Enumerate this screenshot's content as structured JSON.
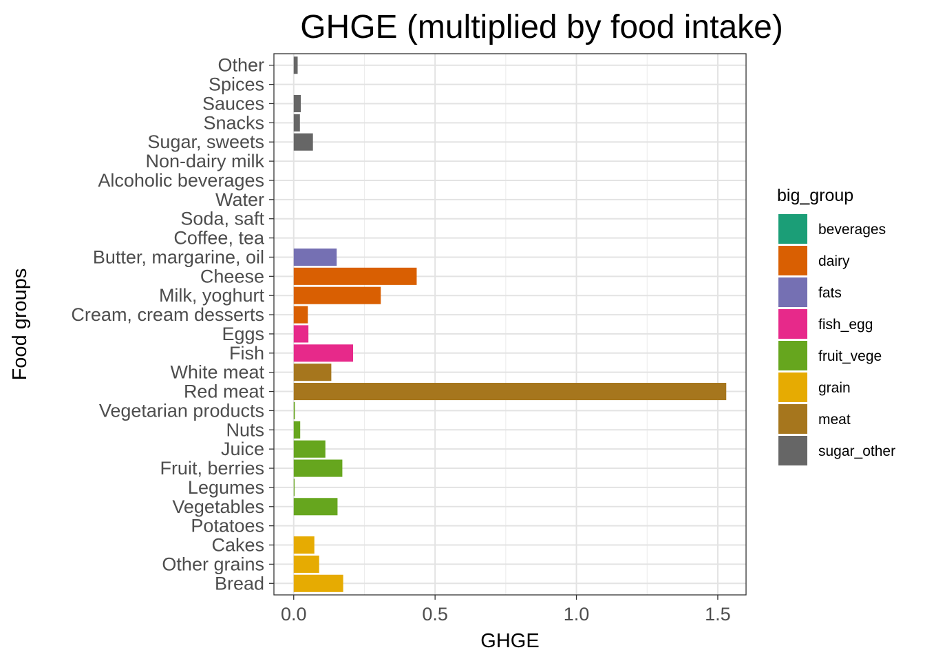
{
  "chart_data": {
    "type": "bar",
    "orientation": "horizontal",
    "title": "GHGE (multiplied by food intake)",
    "xlabel": "GHGE",
    "ylabel": "Food groups",
    "xlim": [
      -0.07,
      1.6
    ],
    "x_ticks": [
      0.0,
      0.5,
      1.0,
      1.5
    ],
    "x_tick_labels": [
      "0.0",
      "0.5",
      "1.0",
      "1.5"
    ],
    "grid": true,
    "legend_position": "right",
    "categories": [
      "Bread",
      "Other grains",
      "Cakes",
      "Potatoes",
      "Vegetables",
      "Legumes",
      "Fruit, berries",
      "Juice",
      "Nuts",
      "Vegetarian products",
      "Red meat",
      "White meat",
      "Fish",
      "Eggs",
      "Cream, cream desserts",
      "Milk, yoghurt",
      "Cheese",
      "Butter, margarine, oil",
      "Coffee, tea",
      "Soda, saft",
      "Water",
      "Alcoholic beverages",
      "Non-dairy milk",
      "Sugar, sweets",
      "Snacks",
      "Sauces",
      "Spices",
      "Other"
    ],
    "values": [
      0.175,
      0.09,
      0.073,
      0.0,
      0.155,
      0.003,
      0.172,
      0.112,
      0.023,
      0.004,
      1.53,
      0.133,
      0.21,
      0.052,
      0.05,
      0.308,
      0.435,
      0.152,
      0.0,
      0.0,
      0.0,
      0.0,
      0.0,
      0.068,
      0.022,
      0.025,
      0.0,
      0.014
    ],
    "groups": [
      "grain",
      "grain",
      "grain",
      "fruit_vege",
      "fruit_vege",
      "fruit_vege",
      "fruit_vege",
      "fruit_vege",
      "fruit_vege",
      "fruit_vege",
      "meat",
      "meat",
      "fish_egg",
      "fish_egg",
      "dairy",
      "dairy",
      "dairy",
      "fats",
      "beverages",
      "beverages",
      "beverages",
      "beverages",
      "beverages",
      "sugar_other",
      "sugar_other",
      "sugar_other",
      "sugar_other",
      "sugar_other"
    ],
    "legend": {
      "title": "big_group",
      "items": [
        {
          "label": "beverages",
          "color": "#1b9e77"
        },
        {
          "label": "dairy",
          "color": "#d95f02"
        },
        {
          "label": "fats",
          "color": "#7570b3"
        },
        {
          "label": "fish_egg",
          "color": "#e7298a"
        },
        {
          "label": "fruit_vege",
          "color": "#66a61e"
        },
        {
          "label": "grain",
          "color": "#e6ab02"
        },
        {
          "label": "meat",
          "color": "#a6761d"
        },
        {
          "label": "sugar_other",
          "color": "#666666"
        }
      ]
    }
  }
}
